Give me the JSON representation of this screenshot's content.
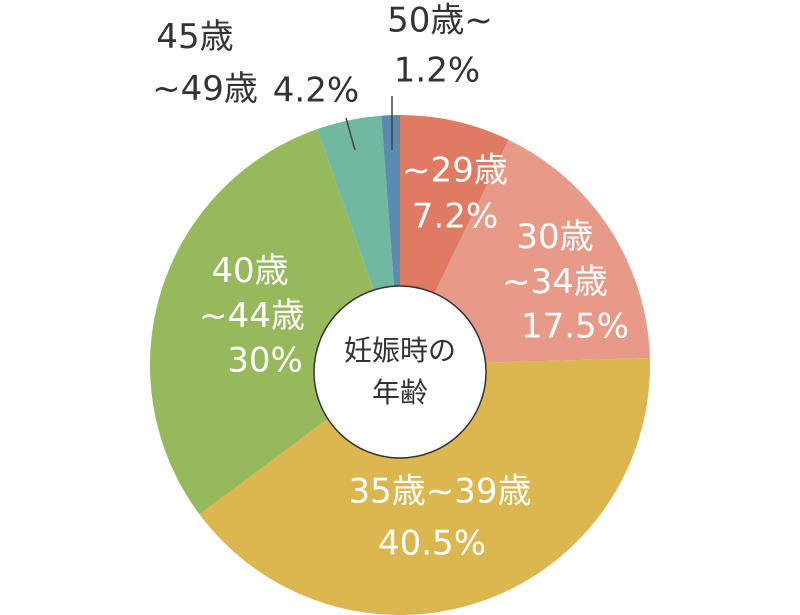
{
  "chart_data": {
    "type": "donut",
    "categories": [
      "~29歳",
      "30歳~34歳",
      "35歳~39歳",
      "40歳~44歳",
      "45歳~49歳",
      "50歳~"
    ],
    "values": [
      7.2,
      17.5,
      40.5,
      30,
      4.2,
      1.2
    ],
    "value_labels": [
      "7.2%",
      "17.5%",
      "40.5%",
      "30%",
      "4.2%",
      "1.2%"
    ],
    "colors": [
      "#e07a62",
      "#e89a88",
      "#dcb64f",
      "#96b95c",
      "#70b8a0",
      "#5b8bb0"
    ],
    "center_label": "妊娠時の年齢"
  }
}
